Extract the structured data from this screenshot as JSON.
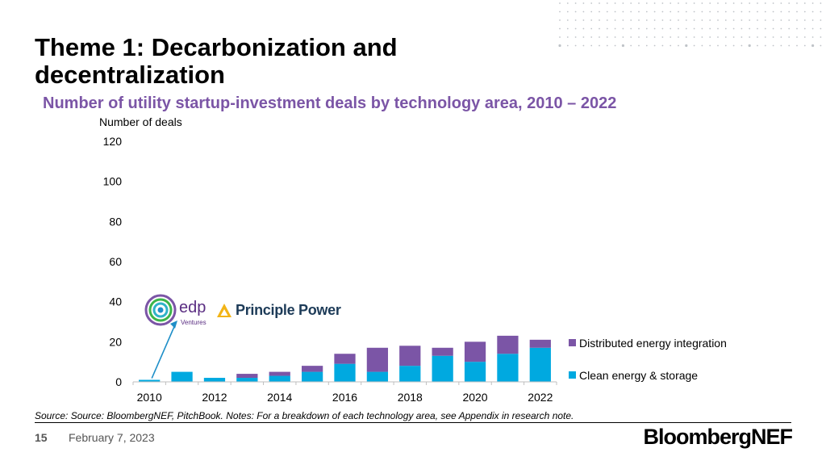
{
  "header": {
    "title": "Theme 1: Decarbonization and decentralization"
  },
  "chart_data": {
    "type": "bar",
    "stacked": true,
    "title": "Number of utility startup-investment deals by technology area, 2010 – 2022",
    "ylabel": "Number of deals",
    "xlabel": "",
    "x": [
      2010,
      2011,
      2012,
      2013,
      2014,
      2015,
      2016,
      2017,
      2018,
      2019,
      2020,
      2021,
      2022
    ],
    "x_tick_labels": [
      "2010",
      "2012",
      "2014",
      "2016",
      "2018",
      "2020",
      "2022"
    ],
    "ylim": [
      0,
      120
    ],
    "y_ticks": [
      0,
      20,
      40,
      60,
      80,
      100,
      120
    ],
    "grid": false,
    "legend_position": "right",
    "series": [
      {
        "name": "Clean energy & storage",
        "color": "#00a9e0",
        "values": [
          1,
          5,
          2,
          2,
          3,
          5,
          9,
          5,
          8,
          13,
          10,
          14,
          17
        ]
      },
      {
        "name": "Distributed energy integration",
        "color": "#7b55a6",
        "values": [
          0,
          0,
          0,
          2,
          2,
          3,
          5,
          12,
          10,
          4,
          10,
          9,
          4
        ]
      }
    ],
    "annotations": [
      {
        "target_year": 2010,
        "logos": [
          "edp Ventures",
          "Principle Power"
        ]
      }
    ]
  },
  "logos": {
    "edp_text": "edp",
    "edp_sub": "Ventures",
    "principle_power": "Principle Power"
  },
  "footer": {
    "source": "Source: Source: BloombergNEF, PitchBook. Notes: For a breakdown of each technology area, see Appendix in research note.",
    "page_number": "15",
    "date": "February 7, 2023",
    "brand": "BloombergNEF"
  },
  "colors": {
    "accent_purple": "#7b55a6",
    "accent_blue": "#00a9e0",
    "arrow": "#1f8fc8"
  }
}
